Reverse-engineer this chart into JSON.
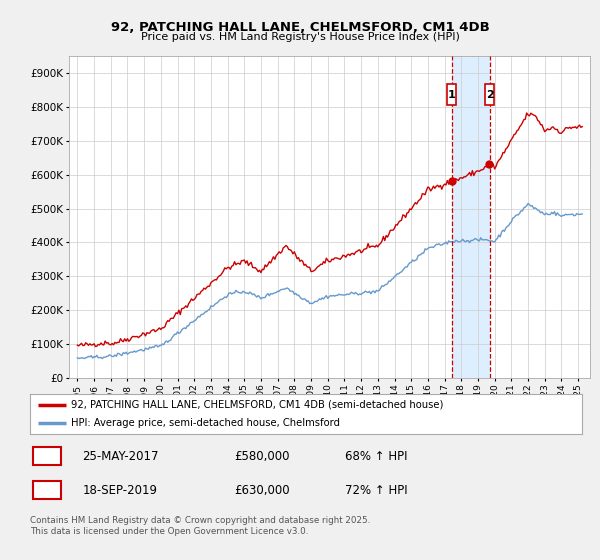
{
  "title": "92, PATCHING HALL LANE, CHELMSFORD, CM1 4DB",
  "subtitle": "Price paid vs. HM Land Registry's House Price Index (HPI)",
  "footer": "Contains HM Land Registry data © Crown copyright and database right 2025.\nThis data is licensed under the Open Government Licence v3.0.",
  "red_line_label": "92, PATCHING HALL LANE, CHELMSFORD, CM1 4DB (semi-detached house)",
  "red_line_color": "#cc0000",
  "blue_line_label": "HPI: Average price, semi-detached house, Chelmsford",
  "blue_line_color": "#6699cc",
  "transaction1_x": 2017.4167,
  "transaction1_label": "1",
  "transaction1_date": "25-MAY-2017",
  "transaction1_price": "£580,000",
  "transaction1_hpi": "68% ↑ HPI",
  "transaction2_x": 2019.7083,
  "transaction2_label": "2",
  "transaction2_date": "18-SEP-2019",
  "transaction2_price": "£630,000",
  "transaction2_hpi": "72% ↑ HPI",
  "ylim": [
    0,
    950000
  ],
  "yticks": [
    0,
    100000,
    200000,
    300000,
    400000,
    500000,
    600000,
    700000,
    800000,
    900000
  ],
  "ytick_labels": [
    "£0",
    "£100K",
    "£200K",
    "£300K",
    "£400K",
    "£500K",
    "£600K",
    "£700K",
    "£800K",
    "£900K"
  ],
  "xlim": [
    1994.5,
    2025.7
  ],
  "xticks": [
    1995,
    1996,
    1997,
    1998,
    1999,
    2000,
    2001,
    2002,
    2003,
    2004,
    2005,
    2006,
    2007,
    2008,
    2009,
    2010,
    2011,
    2012,
    2013,
    2014,
    2015,
    2016,
    2017,
    2018,
    2019,
    2020,
    2021,
    2022,
    2023,
    2024,
    2025
  ],
  "bg_color": "#f0f0f0",
  "plot_bg_color": "#ffffff",
  "highlight_bg_color": "#ddeeff",
  "grid_color": "#cccccc",
  "vline_color": "#cc0000",
  "marker_box_color": "#cc0000"
}
